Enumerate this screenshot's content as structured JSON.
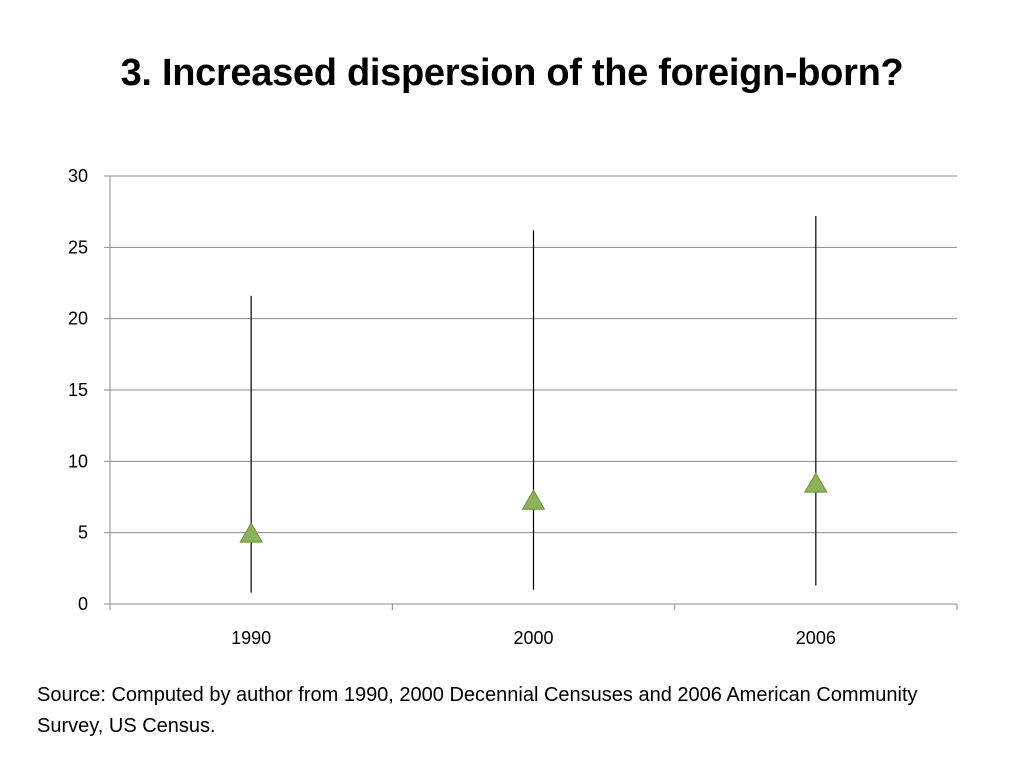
{
  "slide": {
    "title": "3.  Increased dispersion of the foreign-born?",
    "source": "Source:  Computed by author from 1990, 2000 Decennial Censuses and 2006 American Community Survey, US Census."
  },
  "chart_data": {
    "type": "high-low",
    "title": "",
    "xlabel": "",
    "ylabel": "",
    "categories": [
      "1990",
      "2000",
      "2006"
    ],
    "high": [
      21.6,
      26.2,
      27.2
    ],
    "low": [
      0.8,
      1.0,
      1.3
    ],
    "values": [
      4.9,
      7.2,
      8.4
    ],
    "marker": "triangle",
    "marker_color": "#8cb35a",
    "ylim": [
      0,
      30
    ],
    "yticks": [
      0,
      5,
      10,
      15,
      20,
      25,
      30
    ],
    "grid": true,
    "legend": "none"
  }
}
